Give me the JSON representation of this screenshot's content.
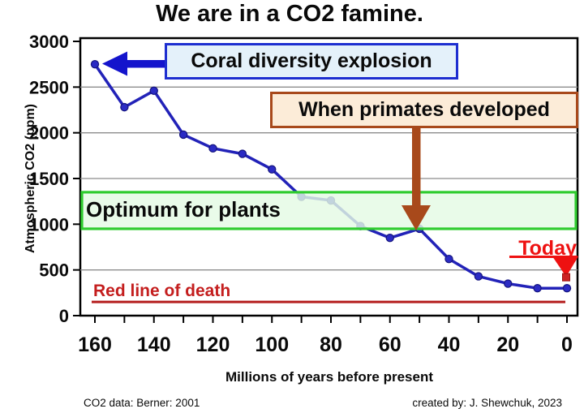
{
  "title": "We are in a CO2 famine.",
  "annotations": {
    "coral": "Coral diversity explosion",
    "primates": "When primates developed",
    "optimum": "Optimum for plants",
    "red_line": "Red line of death",
    "today": "Today"
  },
  "footer": {
    "source": "CO2 data: Berner: 2001",
    "credit": "created by: J. Shewchuk, 2023"
  },
  "colors": {
    "line": "#2222b8",
    "marker": "#2b2bc4",
    "marker_edge": "#15157e",
    "band_fill": "rgba(228,250,228,0.82)",
    "band_edge": "#2fcc2f",
    "coral_box_fill": "#e4f1fa",
    "coral_box_edge": "#1d2ed0",
    "blue_arrow": "#1414cc",
    "primates_box_fill": "#fcecd8",
    "primates_box_edge": "#a8491b",
    "brown_arrow": "#a8491b",
    "death_line": "#b51d1d",
    "death_label": "#c41e1e",
    "today_red": "#ee1111",
    "today_square": "#cc2222",
    "grid": "#8c8c8c",
    "axis": "#000000"
  },
  "chart_data": {
    "type": "line",
    "title": "We are in a CO2 famine.",
    "xlabel": "Millions of years before present",
    "ylabel": "Atmospheric CO2 (ppm)",
    "x": [
      160,
      150,
      140,
      130,
      120,
      110,
      100,
      90,
      80,
      70,
      60,
      50,
      40,
      30,
      20,
      10,
      0
    ],
    "y": [
      2750,
      2280,
      2460,
      1980,
      1830,
      1770,
      1600,
      1300,
      1260,
      980,
      850,
      950,
      620,
      430,
      350,
      300,
      300
    ],
    "x_axis_reversed": true,
    "xlim": [
      165,
      -4
    ],
    "ylim": [
      0,
      3000
    ],
    "x_ticks_labeled": [
      160,
      140,
      120,
      100,
      80,
      60,
      40,
      20,
      0
    ],
    "x_tick_minor_step": 10,
    "y_ticks": [
      0,
      500,
      1000,
      1500,
      2000,
      2500,
      3000
    ],
    "gridline_values": [
      500,
      1500,
      2000,
      2500
    ],
    "legend": "none",
    "optimum_band_ppm": [
      950,
      1350
    ],
    "red_line_ppm": 150,
    "today_marker_ppm": 420,
    "annotations": [
      {
        "text": "Coral diversity explosion",
        "style": "blue box with left arrow",
        "points_to": {
          "x": 160,
          "y": 2750
        }
      },
      {
        "text": "When primates developed",
        "style": "tan box with brown down arrow",
        "points_to": {
          "x": 50,
          "y": 950
        }
      },
      {
        "text": "Optimum for plants",
        "style": "green translucent band",
        "band_ppm": [
          950,
          1350
        ]
      },
      {
        "text": "Red line of death",
        "style": "dark red horizontal line",
        "line_ppm": 150
      },
      {
        "text": "Today",
        "style": "red label with down arrow and square marker",
        "points_to": {
          "x": 0,
          "y": 420
        }
      }
    ]
  }
}
